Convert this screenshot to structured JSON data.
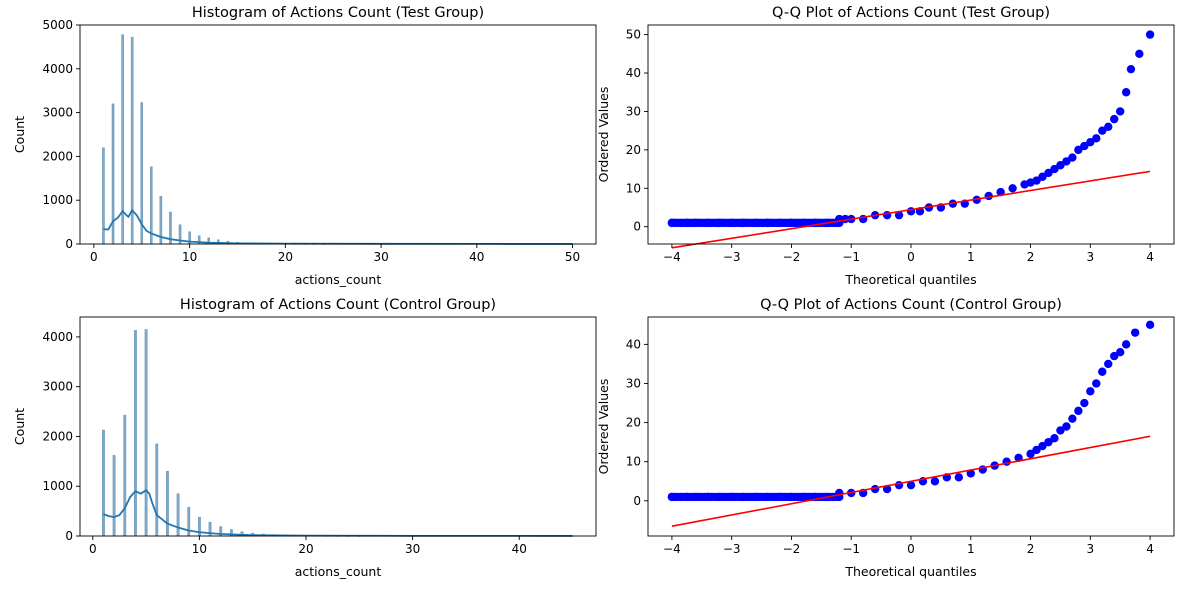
{
  "colors": {
    "hist_bar": "#7ea9c8",
    "kde_line": "#1f77b4",
    "qq_points": "#0000ff",
    "qq_line": "#ff0000"
  },
  "chart_data": [
    {
      "type": "bar",
      "title": "Histogram of Actions Count (Test Group)",
      "xlabel": "actions_count",
      "ylabel": "Count",
      "xlim": [
        -1.45,
        52.45
      ],
      "ylim": [
        0,
        5000
      ],
      "xticks": [
        0,
        10,
        20,
        30,
        40,
        50
      ],
      "yticks": [
        0,
        1000,
        2000,
        3000,
        4000,
        5000
      ],
      "bins": [
        {
          "x": 1,
          "count": 2200
        },
        {
          "x": 2,
          "count": 3200
        },
        {
          "x": 3,
          "count": 4780
        },
        {
          "x": 4,
          "count": 4720
        },
        {
          "x": 5,
          "count": 3230
        },
        {
          "x": 6,
          "count": 1760
        },
        {
          "x": 7,
          "count": 1090
        },
        {
          "x": 8,
          "count": 730
        },
        {
          "x": 9,
          "count": 440
        },
        {
          "x": 10,
          "count": 280
        },
        {
          "x": 11,
          "count": 190
        },
        {
          "x": 12,
          "count": 140
        },
        {
          "x": 13,
          "count": 95
        },
        {
          "x": 14,
          "count": 65
        },
        {
          "x": 15,
          "count": 40
        },
        {
          "x": 16,
          "count": 28
        },
        {
          "x": 17,
          "count": 18
        },
        {
          "x": 18,
          "count": 12
        },
        {
          "x": 19,
          "count": 8
        },
        {
          "x": 20,
          "count": 6
        },
        {
          "x": 21,
          "count": 4
        },
        {
          "x": 22,
          "count": 3
        },
        {
          "x": 23,
          "count": 2
        },
        {
          "x": 24,
          "count": 2
        }
      ],
      "kde": {
        "x": [
          1,
          1.5,
          2,
          2.5,
          3,
          3.3,
          3.6,
          4,
          4.5,
          5,
          5.5,
          6,
          7,
          8,
          9,
          10,
          12,
          15,
          20,
          30,
          40,
          50
        ],
        "y": [
          340,
          330,
          520,
          600,
          750,
          680,
          620,
          770,
          650,
          450,
          300,
          240,
          160,
          110,
          80,
          55,
          30,
          15,
          8,
          4,
          2,
          1
        ]
      }
    },
    {
      "type": "scatter",
      "title": "Q-Q Plot of Actions Count (Test Group)",
      "xlabel": "Theoretical quantiles",
      "ylabel": "Ordered Values",
      "xlim": [
        -4.4,
        4.4
      ],
      "ylim": [
        -4.5,
        52.5
      ],
      "xticks": [
        -4,
        -3,
        -2,
        -1,
        0,
        1,
        2,
        3,
        4
      ],
      "yticks": [
        0,
        10,
        20,
        30,
        40,
        50
      ],
      "points": {
        "x": [
          -4.0,
          -3.75,
          -3.6,
          -3.4,
          -3.2,
          -3.0,
          -2.8,
          -2.6,
          -2.4,
          -2.2,
          -2.0,
          -1.8,
          -1.6,
          -1.4,
          -1.2,
          -1.1,
          -1.0,
          -0.8,
          -0.6,
          -0.4,
          -0.2,
          0.0,
          0.15,
          0.3,
          0.5,
          0.7,
          0.9,
          1.1,
          1.3,
          1.5,
          1.7,
          1.9,
          2.0,
          2.1,
          2.2,
          2.3,
          2.4,
          2.5,
          2.6,
          2.7,
          2.8,
          2.9,
          3.0,
          3.1,
          3.2,
          3.3,
          3.4,
          3.5,
          3.6,
          3.68,
          3.82,
          4.0
        ],
        "y": [
          1,
          1,
          1,
          1,
          1,
          1,
          1,
          1,
          1,
          1,
          1,
          1,
          1,
          1,
          2,
          2,
          2,
          2,
          3,
          3,
          3,
          4,
          4,
          5,
          5,
          6,
          6,
          7,
          8,
          9,
          10,
          11,
          11.5,
          12,
          13,
          14,
          15,
          16,
          17,
          18,
          20,
          21,
          22,
          23,
          25,
          26,
          28,
          30,
          35,
          41,
          45,
          50
        ]
      },
      "fit_line": {
        "x": [
          -4,
          4
        ],
        "y": [
          -5.5,
          14.4
        ]
      }
    },
    {
      "type": "bar",
      "title": "Histogram of Actions Count (Control Group)",
      "xlabel": "actions_count",
      "ylabel": "Count",
      "xlim": [
        -1.2,
        47.2
      ],
      "ylim": [
        0,
        4400
      ],
      "xticks": [
        0,
        10,
        20,
        30,
        40
      ],
      "yticks": [
        0,
        1000,
        2000,
        3000,
        4000
      ],
      "bins": [
        {
          "x": 1,
          "count": 2130
        },
        {
          "x": 2,
          "count": 1620
        },
        {
          "x": 3,
          "count": 2430
        },
        {
          "x": 4,
          "count": 4130
        },
        {
          "x": 5,
          "count": 4150
        },
        {
          "x": 6,
          "count": 1850
        },
        {
          "x": 7,
          "count": 1300
        },
        {
          "x": 8,
          "count": 850
        },
        {
          "x": 9,
          "count": 580
        },
        {
          "x": 10,
          "count": 380
        },
        {
          "x": 11,
          "count": 280
        },
        {
          "x": 12,
          "count": 190
        },
        {
          "x": 13,
          "count": 130
        },
        {
          "x": 14,
          "count": 85
        },
        {
          "x": 15,
          "count": 60
        },
        {
          "x": 16,
          "count": 40
        },
        {
          "x": 17,
          "count": 28
        },
        {
          "x": 18,
          "count": 18
        },
        {
          "x": 19,
          "count": 12
        },
        {
          "x": 20,
          "count": 8
        },
        {
          "x": 21,
          "count": 6
        },
        {
          "x": 22,
          "count": 4
        },
        {
          "x": 23,
          "count": 3
        },
        {
          "x": 24,
          "count": 2
        },
        {
          "x": 25,
          "count": 2
        }
      ],
      "kde": {
        "x": [
          1,
          1.5,
          2,
          2.5,
          3,
          3.5,
          4,
          4.5,
          5,
          5.3,
          5.6,
          6,
          7,
          8,
          9,
          10,
          12,
          15,
          20,
          30,
          45
        ],
        "y": [
          440,
          400,
          380,
          420,
          560,
          780,
          900,
          850,
          920,
          850,
          650,
          420,
          250,
          170,
          110,
          75,
          40,
          18,
          8,
          3,
          1
        ]
      }
    },
    {
      "type": "scatter",
      "title": "Q-Q Plot of Actions Count (Control Group)",
      "xlabel": "Theoretical quantiles",
      "ylabel": "Ordered Values",
      "xlim": [
        -4.4,
        4.4
      ],
      "ylim": [
        -9,
        47
      ],
      "xticks": [
        -4,
        -3,
        -2,
        -1,
        0,
        1,
        2,
        3,
        4
      ],
      "yticks": [
        0,
        10,
        20,
        30,
        40
      ],
      "points": {
        "x": [
          -4.0,
          -3.75,
          -3.6,
          -3.4,
          -3.2,
          -3.0,
          -2.8,
          -2.6,
          -2.4,
          -2.2,
          -2.0,
          -1.8,
          -1.6,
          -1.4,
          -1.2,
          -1.0,
          -0.8,
          -0.6,
          -0.4,
          -0.2,
          0.0,
          0.2,
          0.4,
          0.6,
          0.8,
          1.0,
          1.2,
          1.4,
          1.6,
          1.8,
          2.0,
          2.1,
          2.2,
          2.3,
          2.4,
          2.5,
          2.6,
          2.7,
          2.8,
          2.9,
          3.0,
          3.1,
          3.2,
          3.3,
          3.4,
          3.5,
          3.6,
          3.75,
          4.0
        ],
        "y": [
          1,
          1,
          1,
          1,
          1,
          1,
          1,
          1,
          1,
          1,
          1,
          1,
          1,
          1,
          2,
          2,
          2,
          3,
          3,
          4,
          4,
          5,
          5,
          6,
          6,
          7,
          8,
          9,
          10,
          11,
          12,
          13,
          14,
          15,
          16,
          18,
          19,
          21,
          23,
          25,
          28,
          30,
          33,
          35,
          37,
          38,
          40,
          43,
          45
        ]
      },
      "fit_line": {
        "x": [
          -4,
          4
        ],
        "y": [
          -6.5,
          16.5
        ]
      }
    }
  ]
}
